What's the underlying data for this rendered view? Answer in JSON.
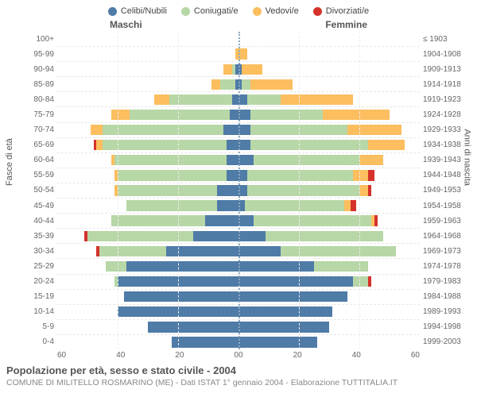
{
  "colors": {
    "celibi": "#4f7ba7",
    "coniugati": "#b7d7a6",
    "vedovi": "#fcbe5f",
    "divorziati": "#d4322a",
    "grid": "#e8e8e8",
    "center": "#8aa8c0",
    "bg": "#ffffff"
  },
  "legend": {
    "items": [
      {
        "label": "Celibi/Nubili",
        "color": "#4f7ba7"
      },
      {
        "label": "Coniugati/e",
        "color": "#b7d7a6"
      },
      {
        "label": "Vedovi/e",
        "color": "#fcbe5f"
      },
      {
        "label": "Divorziati/e",
        "color": "#d4322a"
      }
    ]
  },
  "headers": {
    "male": "Maschi",
    "female": "Femmine"
  },
  "yaxis_left_label": "Fasce di età",
  "yaxis_right_label": "Anni di nascita",
  "xaxis": {
    "max": 60,
    "ticks_left": [
      "60",
      "40",
      "20",
      "0"
    ],
    "ticks_right": [
      "0",
      "20",
      "40",
      "60"
    ]
  },
  "age_groups": [
    {
      "age": "100+",
      "birth": "≤ 1903",
      "m": {
        "c": 0,
        "m": 0,
        "w": 0,
        "d": 0
      },
      "f": {
        "c": 0,
        "m": 0,
        "w": 0,
        "d": 0
      }
    },
    {
      "age": "95-99",
      "birth": "1904-1908",
      "m": {
        "c": 0,
        "m": 0,
        "w": 1,
        "d": 0
      },
      "f": {
        "c": 0,
        "m": 0,
        "w": 3,
        "d": 0
      }
    },
    {
      "age": "90-94",
      "birth": "1909-1913",
      "m": {
        "c": 1,
        "m": 1,
        "w": 3,
        "d": 0
      },
      "f": {
        "c": 1,
        "m": 0,
        "w": 7,
        "d": 0
      }
    },
    {
      "age": "85-89",
      "birth": "1914-1918",
      "m": {
        "c": 1,
        "m": 5,
        "w": 3,
        "d": 0
      },
      "f": {
        "c": 1,
        "m": 3,
        "w": 14,
        "d": 0
      }
    },
    {
      "age": "80-84",
      "birth": "1919-1923",
      "m": {
        "c": 2,
        "m": 21,
        "w": 5,
        "d": 0
      },
      "f": {
        "c": 3,
        "m": 11,
        "w": 24,
        "d": 0
      }
    },
    {
      "age": "75-79",
      "birth": "1924-1928",
      "m": {
        "c": 3,
        "m": 33,
        "w": 6,
        "d": 0
      },
      "f": {
        "c": 4,
        "m": 24,
        "w": 22,
        "d": 0
      }
    },
    {
      "age": "70-74",
      "birth": "1929-1933",
      "m": {
        "c": 5,
        "m": 40,
        "w": 4,
        "d": 0
      },
      "f": {
        "c": 4,
        "m": 32,
        "w": 18,
        "d": 0
      }
    },
    {
      "age": "65-69",
      "birth": "1934-1938",
      "m": {
        "c": 4,
        "m": 41,
        "w": 2,
        "d": 1
      },
      "f": {
        "c": 4,
        "m": 39,
        "w": 12,
        "d": 0
      }
    },
    {
      "age": "60-64",
      "birth": "1939-1943",
      "m": {
        "c": 4,
        "m": 37,
        "w": 1,
        "d": 0
      },
      "f": {
        "c": 5,
        "m": 35,
        "w": 8,
        "d": 0
      }
    },
    {
      "age": "55-59",
      "birth": "1944-1948",
      "m": {
        "c": 4,
        "m": 36,
        "w": 1,
        "d": 0
      },
      "f": {
        "c": 3,
        "m": 35,
        "w": 5,
        "d": 2
      }
    },
    {
      "age": "50-54",
      "birth": "1949-1953",
      "m": {
        "c": 7,
        "m": 33,
        "w": 1,
        "d": 0
      },
      "f": {
        "c": 3,
        "m": 37,
        "w": 3,
        "d": 1
      }
    },
    {
      "age": "45-49",
      "birth": "1954-1958",
      "m": {
        "c": 7,
        "m": 30,
        "w": 0,
        "d": 0
      },
      "f": {
        "c": 2,
        "m": 33,
        "w": 2,
        "d": 2
      }
    },
    {
      "age": "40-44",
      "birth": "1959-1963",
      "m": {
        "c": 11,
        "m": 31,
        "w": 0,
        "d": 0
      },
      "f": {
        "c": 5,
        "m": 39,
        "w": 1,
        "d": 1
      }
    },
    {
      "age": "35-39",
      "birth": "1964-1968",
      "m": {
        "c": 15,
        "m": 35,
        "w": 0,
        "d": 1
      },
      "f": {
        "c": 9,
        "m": 39,
        "w": 0,
        "d": 0
      }
    },
    {
      "age": "30-34",
      "birth": "1969-1973",
      "m": {
        "c": 24,
        "m": 22,
        "w": 0,
        "d": 1
      },
      "f": {
        "c": 14,
        "m": 38,
        "w": 0,
        "d": 0
      }
    },
    {
      "age": "25-29",
      "birth": "1974-1978",
      "m": {
        "c": 37,
        "m": 7,
        "w": 0,
        "d": 0
      },
      "f": {
        "c": 25,
        "m": 18,
        "w": 0,
        "d": 0
      }
    },
    {
      "age": "20-24",
      "birth": "1979-1983",
      "m": {
        "c": 40,
        "m": 1,
        "w": 0,
        "d": 0
      },
      "f": {
        "c": 38,
        "m": 5,
        "w": 0,
        "d": 1
      }
    },
    {
      "age": "15-19",
      "birth": "1984-1988",
      "m": {
        "c": 38,
        "m": 0,
        "w": 0,
        "d": 0
      },
      "f": {
        "c": 36,
        "m": 0,
        "w": 0,
        "d": 0
      }
    },
    {
      "age": "10-14",
      "birth": "1989-1993",
      "m": {
        "c": 40,
        "m": 0,
        "w": 0,
        "d": 0
      },
      "f": {
        "c": 31,
        "m": 0,
        "w": 0,
        "d": 0
      }
    },
    {
      "age": "5-9",
      "birth": "1994-1998",
      "m": {
        "c": 30,
        "m": 0,
        "w": 0,
        "d": 0
      },
      "f": {
        "c": 30,
        "m": 0,
        "w": 0,
        "d": 0
      }
    },
    {
      "age": "0-4",
      "birth": "1999-2003",
      "m": {
        "c": 22,
        "m": 0,
        "w": 0,
        "d": 0
      },
      "f": {
        "c": 26,
        "m": 0,
        "w": 0,
        "d": 0
      }
    }
  ],
  "title": "Popolazione per età, sesso e stato civile - 2004",
  "subtitle": "COMUNE DI MILITELLO ROSMARINO (ME) - Dati ISTAT 1° gennaio 2004 - Elaborazione TUTTITALIA.IT"
}
